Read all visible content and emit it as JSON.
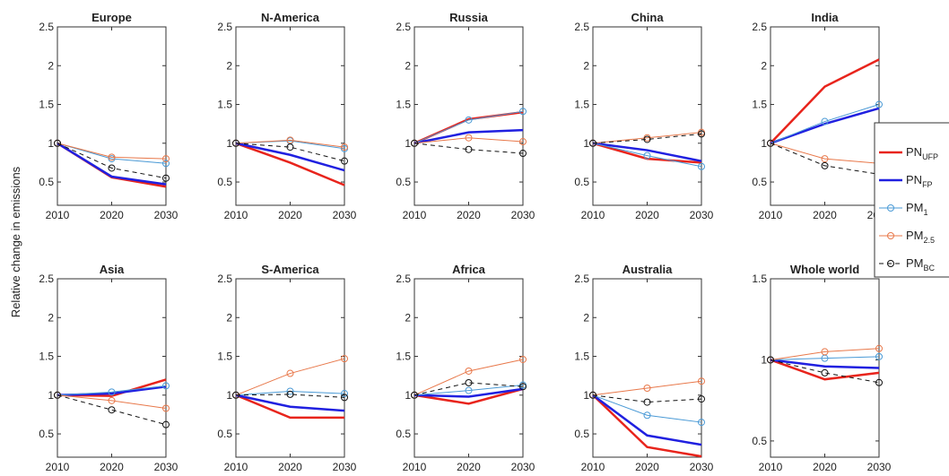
{
  "ylabel": "Relative change in emissions",
  "legend": [
    {
      "name": "PN",
      "subscript": "UFP",
      "color": "#e8241c",
      "width": 2.5,
      "marker": false,
      "dashed": false
    },
    {
      "name": "PN",
      "subscript": "FP",
      "color": "#2020e0",
      "width": 2.5,
      "marker": false,
      "dashed": false
    },
    {
      "name": "PM",
      "subscript": "1",
      "color": "#4a9ad6",
      "width": 1,
      "marker": true,
      "dashed": false
    },
    {
      "name": "PM",
      "subscript": "2.5",
      "color": "#e8784a",
      "width": 1,
      "marker": true,
      "dashed": false
    },
    {
      "name": "PM",
      "subscript": "BC",
      "color": "#111111",
      "width": 1,
      "marker": true,
      "dashed": true
    }
  ],
  "chart_data": [
    {
      "type": "line",
      "title": "Europe",
      "x": [
        2010,
        2020,
        2030
      ],
      "xlim": [
        2010,
        2030
      ],
      "xticks": [
        2010,
        2020,
        2030
      ],
      "ylim": [
        0.2,
        2.5
      ],
      "yticks": [
        0.5,
        1,
        1.5,
        2,
        2.5
      ],
      "series": [
        {
          "values": [
            1,
            0.56,
            0.44
          ]
        },
        {
          "values": [
            1,
            0.57,
            0.47
          ]
        },
        {
          "values": [
            1,
            0.8,
            0.74
          ]
        },
        {
          "values": [
            1,
            0.82,
            0.8
          ]
        },
        {
          "values": [
            1,
            0.68,
            0.55
          ]
        }
      ]
    },
    {
      "type": "line",
      "title": "N-America",
      "x": [
        2010,
        2020,
        2030
      ],
      "xlim": [
        2010,
        2030
      ],
      "xticks": [
        2010,
        2020,
        2030
      ],
      "ylim": [
        0.2,
        2.5
      ],
      "yticks": [
        0.5,
        1,
        1.5,
        2,
        2.5
      ],
      "series": [
        {
          "values": [
            1,
            0.75,
            0.46
          ]
        },
        {
          "values": [
            1,
            0.85,
            0.65
          ]
        },
        {
          "values": [
            1,
            1.03,
            0.93
          ]
        },
        {
          "values": [
            1,
            1.04,
            0.95
          ]
        },
        {
          "values": [
            1,
            0.95,
            0.77
          ]
        }
      ]
    },
    {
      "type": "line",
      "title": "Russia",
      "x": [
        2010,
        2020,
        2030
      ],
      "xlim": [
        2010,
        2030
      ],
      "xticks": [
        2010,
        2020,
        2030
      ],
      "ylim": [
        0.2,
        2.5
      ],
      "yticks": [
        0.5,
        1,
        1.5,
        2,
        2.5
      ],
      "series": [
        {
          "values": [
            1,
            1.31,
            1.4
          ]
        },
        {
          "values": [
            1,
            1.14,
            1.17
          ]
        },
        {
          "values": [
            1,
            1.3,
            1.41
          ]
        },
        {
          "values": [
            1,
            1.07,
            1.02
          ]
        },
        {
          "values": [
            1,
            0.92,
            0.87
          ]
        }
      ]
    },
    {
      "type": "line",
      "title": "China",
      "x": [
        2010,
        2020,
        2030
      ],
      "xlim": [
        2010,
        2030
      ],
      "xticks": [
        2010,
        2020,
        2030
      ],
      "ylim": [
        0.2,
        2.5
      ],
      "yticks": [
        0.5,
        1,
        1.5,
        2,
        2.5
      ],
      "series": [
        {
          "values": [
            1,
            0.8,
            0.75
          ]
        },
        {
          "values": [
            1,
            0.91,
            0.77
          ]
        },
        {
          "values": [
            1,
            0.84,
            0.7
          ]
        },
        {
          "values": [
            1,
            1.07,
            1.14
          ]
        },
        {
          "values": [
            1,
            1.05,
            1.12
          ]
        }
      ]
    },
    {
      "type": "line",
      "title": "India",
      "x": [
        2010,
        2020,
        2030
      ],
      "xlim": [
        2010,
        2030
      ],
      "xticks": [
        2010,
        2020,
        2030
      ],
      "ylim": [
        0.2,
        2.5
      ],
      "yticks": [
        0.5,
        1,
        1.5,
        2,
        2.5
      ],
      "series": [
        {
          "values": [
            1,
            1.73,
            2.08
          ]
        },
        {
          "values": [
            1,
            1.25,
            1.45
          ]
        },
        {
          "values": [
            1,
            1.28,
            1.5
          ]
        },
        {
          "values": [
            1,
            0.8,
            0.74
          ]
        },
        {
          "values": [
            1,
            0.71,
            0.6
          ]
        }
      ]
    },
    {
      "type": "line",
      "title": "Asia",
      "x": [
        2010,
        2020,
        2030
      ],
      "xlim": [
        2010,
        2030
      ],
      "xticks": [
        2010,
        2020,
        2030
      ],
      "ylim": [
        0.2,
        2.5
      ],
      "yticks": [
        0.5,
        1,
        1.5,
        2,
        2.5
      ],
      "series": [
        {
          "values": [
            1,
            0.99,
            1.2
          ]
        },
        {
          "values": [
            1,
            1.02,
            1.11
          ]
        },
        {
          "values": [
            1,
            1.04,
            1.12
          ]
        },
        {
          "values": [
            1,
            0.93,
            0.83
          ]
        },
        {
          "values": [
            1,
            0.81,
            0.62
          ]
        }
      ]
    },
    {
      "type": "line",
      "title": "S-America",
      "x": [
        2010,
        2020,
        2030
      ],
      "xlim": [
        2010,
        2030
      ],
      "xticks": [
        2010,
        2020,
        2030
      ],
      "ylim": [
        0.2,
        2.5
      ],
      "yticks": [
        0.5,
        1,
        1.5,
        2,
        2.5
      ],
      "series": [
        {
          "values": [
            1,
            0.71,
            0.71
          ]
        },
        {
          "values": [
            1,
            0.85,
            0.8
          ]
        },
        {
          "values": [
            1,
            1.05,
            1.02
          ]
        },
        {
          "values": [
            1,
            1.28,
            1.47
          ]
        },
        {
          "values": [
            1,
            1.01,
            0.97
          ]
        }
      ]
    },
    {
      "type": "line",
      "title": "Africa",
      "x": [
        2010,
        2020,
        2030
      ],
      "xlim": [
        2010,
        2030
      ],
      "xticks": [
        2010,
        2020,
        2030
      ],
      "ylim": [
        0.2,
        2.5
      ],
      "yticks": [
        0.5,
        1,
        1.5,
        2,
        2.5
      ],
      "series": [
        {
          "values": [
            1,
            0.89,
            1.08
          ]
        },
        {
          "values": [
            1,
            0.98,
            1.08
          ]
        },
        {
          "values": [
            1,
            1.06,
            1.13
          ]
        },
        {
          "values": [
            1,
            1.31,
            1.46
          ]
        },
        {
          "values": [
            1,
            1.16,
            1.11
          ]
        }
      ]
    },
    {
      "type": "line",
      "title": "Australia",
      "x": [
        2010,
        2020,
        2030
      ],
      "xlim": [
        2010,
        2030
      ],
      "xticks": [
        2010,
        2020,
        2030
      ],
      "ylim": [
        0.2,
        2.5
      ],
      "yticks": [
        0.5,
        1,
        1.5,
        2,
        2.5
      ],
      "series": [
        {
          "values": [
            1,
            0.33,
            0.21
          ]
        },
        {
          "values": [
            1,
            0.48,
            0.36
          ]
        },
        {
          "values": [
            1,
            0.74,
            0.65
          ]
        },
        {
          "values": [
            1,
            1.09,
            1.18
          ]
        },
        {
          "values": [
            1,
            0.91,
            0.95
          ]
        }
      ]
    },
    {
      "type": "line",
      "title": "Whole world",
      "x": [
        2010,
        2020,
        2030
      ],
      "xlim": [
        2010,
        2030
      ],
      "xticks": [
        2010,
        2020,
        2030
      ],
      "ylim": [
        0.4,
        1.5
      ],
      "yticks": [
        0.5,
        1,
        1.5
      ],
      "series": [
        {
          "values": [
            1,
            0.88,
            0.92
          ]
        },
        {
          "values": [
            1,
            0.96,
            0.95
          ]
        },
        {
          "values": [
            1,
            1.01,
            1.02
          ]
        },
        {
          "values": [
            1,
            1.05,
            1.07
          ]
        },
        {
          "values": [
            1,
            0.92,
            0.86
          ]
        }
      ]
    }
  ]
}
